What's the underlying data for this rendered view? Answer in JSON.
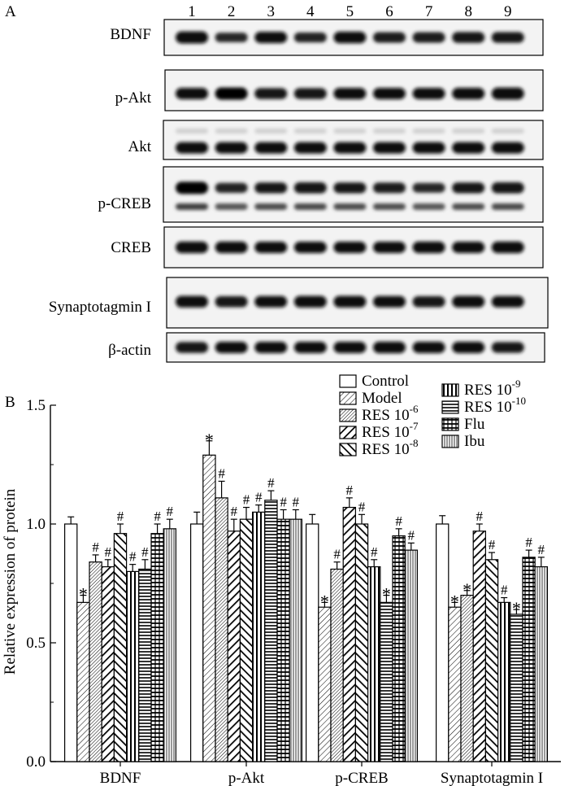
{
  "panel_a": {
    "label": "A",
    "lanes": [
      "1",
      "2",
      "3",
      "4",
      "5",
      "6",
      "7",
      "8",
      "9"
    ],
    "blots": [
      {
        "name": "BDNF",
        "intensities": [
          0.95,
          0.55,
          0.85,
          0.6,
          0.9,
          0.7,
          0.7,
          0.8,
          0.75
        ]
      },
      {
        "name": "p-Akt",
        "intensities": [
          0.85,
          1.0,
          0.8,
          0.8,
          0.85,
          0.85,
          0.85,
          0.9,
          0.95
        ]
      },
      {
        "name": "Akt",
        "intensities": [
          0.85,
          0.85,
          0.85,
          0.85,
          0.85,
          0.85,
          0.85,
          0.85,
          0.85
        ]
      },
      {
        "name": "p-CREB",
        "intensities": [
          1.0,
          0.6,
          0.75,
          0.8,
          0.75,
          0.7,
          0.55,
          0.75,
          0.8
        ]
      },
      {
        "name": "CREB",
        "intensities": [
          0.9,
          0.9,
          0.85,
          0.85,
          0.85,
          0.85,
          0.9,
          0.85,
          0.9
        ]
      },
      {
        "name": "Synaptotagmin I",
        "intensities": [
          0.9,
          0.8,
          0.85,
          0.9,
          0.9,
          0.85,
          0.8,
          0.9,
          0.85
        ]
      },
      {
        "name": "β-actin",
        "intensities": [
          0.8,
          0.85,
          0.85,
          0.85,
          0.85,
          0.9,
          0.85,
          0.85,
          0.75
        ]
      }
    ]
  },
  "panel_b": {
    "label": "B"
  },
  "chart_data": {
    "type": "bar",
    "title": "",
    "xlabel": "",
    "ylabel": "Relative expression of protein",
    "ylim": [
      0.0,
      1.5
    ],
    "yticks": [
      "0.0",
      "0.5",
      "1.0",
      "1.5"
    ],
    "categories": [
      "BDNF",
      "p-Akt",
      "p-CREB",
      "Synaptotagmin I"
    ],
    "legend_position": "top-right",
    "series": [
      {
        "name": "Control",
        "exponent": "",
        "pattern": "none",
        "values": [
          1.0,
          1.0,
          1.0,
          1.0
        ],
        "errors": [
          0.03,
          0.05,
          0.04,
          0.035
        ],
        "marks": [
          "",
          "",
          "",
          ""
        ]
      },
      {
        "name": "Model",
        "exponent": "",
        "pattern": "diag-thin",
        "values": [
          0.67,
          1.29,
          0.65,
          0.65
        ],
        "errors": [
          0.03,
          0.06,
          0.02,
          0.02
        ],
        "marks": [
          "*",
          "*",
          "*",
          "*"
        ]
      },
      {
        "name": "RES 10",
        "exponent": "-6",
        "pattern": "diag-dense",
        "values": [
          0.84,
          1.11,
          0.81,
          0.7
        ],
        "errors": [
          0.03,
          0.07,
          0.03,
          0.02
        ],
        "marks": [
          "#",
          "#",
          "#",
          "*"
        ]
      },
      {
        "name": "RES 10",
        "exponent": "-7",
        "pattern": "diag-bold",
        "values": [
          0.82,
          0.97,
          1.07,
          0.97
        ],
        "errors": [
          0.03,
          0.05,
          0.04,
          0.03
        ],
        "marks": [
          "#",
          "#",
          "#",
          "#"
        ]
      },
      {
        "name": "RES 10",
        "exponent": "-8",
        "pattern": "back-bold",
        "values": [
          0.96,
          1.02,
          1.0,
          0.85
        ],
        "errors": [
          0.04,
          0.05,
          0.04,
          0.03
        ],
        "marks": [
          "#",
          "#",
          "#",
          "#"
        ]
      },
      {
        "name": "RES 10",
        "exponent": "-9",
        "pattern": "vert",
        "values": [
          0.8,
          1.05,
          0.82,
          0.67
        ],
        "errors": [
          0.03,
          0.03,
          0.03,
          0.02
        ],
        "marks": [
          "#",
          "#",
          "#",
          "#"
        ]
      },
      {
        "name": "RES 10",
        "exponent": "-10",
        "pattern": "horiz",
        "values": [
          0.81,
          1.1,
          0.67,
          0.62
        ],
        "errors": [
          0.04,
          0.04,
          0.03,
          0.02
        ],
        "marks": [
          "#",
          "#",
          "*",
          "*"
        ]
      },
      {
        "name": "Flu",
        "exponent": "",
        "pattern": "grid",
        "values": [
          0.96,
          1.02,
          0.95,
          0.86
        ],
        "errors": [
          0.04,
          0.04,
          0.03,
          0.03
        ],
        "marks": [
          "#",
          "#",
          "#",
          "#"
        ]
      },
      {
        "name": "Ibu",
        "exponent": "",
        "pattern": "vert-thin",
        "values": [
          0.98,
          1.02,
          0.89,
          0.82
        ],
        "errors": [
          0.04,
          0.04,
          0.03,
          0.04
        ],
        "marks": [
          "#",
          "#",
          "#",
          "#"
        ]
      }
    ]
  }
}
